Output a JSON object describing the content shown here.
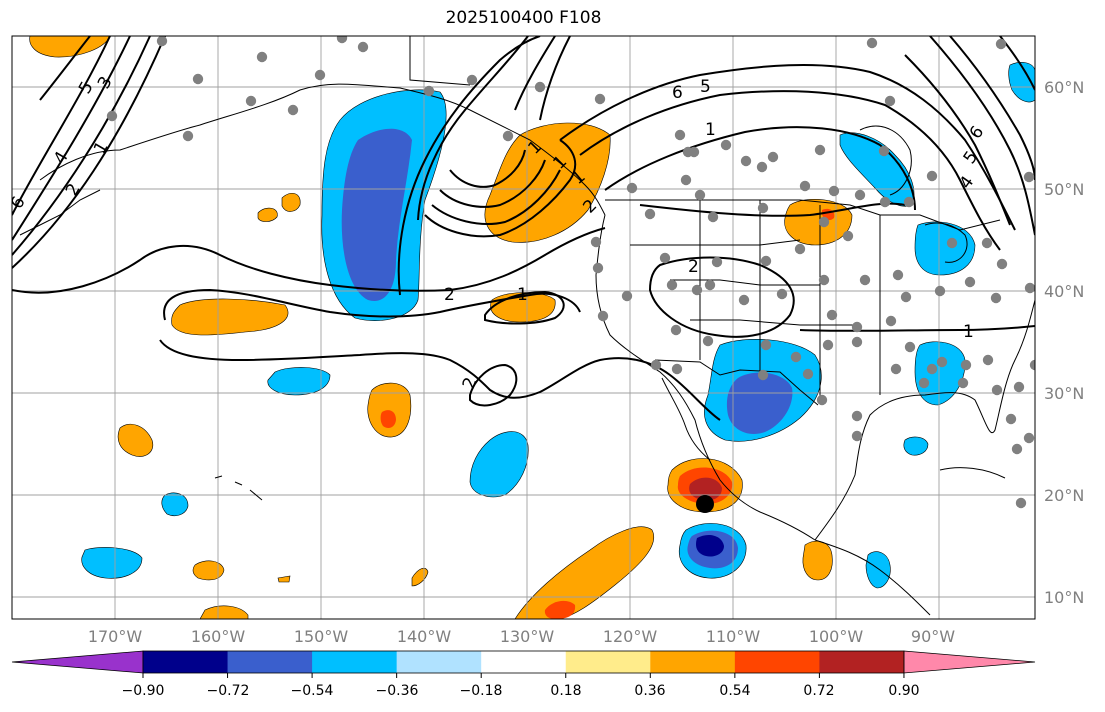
{
  "title": "2025100400 F108",
  "lat_labels": [
    "60°N",
    "50°N",
    "40°N",
    "30°N",
    "20°N",
    "10°N"
  ],
  "lon_labels": [
    "170°W",
    "160°W",
    "150°W",
    "140°W",
    "130°W",
    "120°W",
    "110°W",
    "100°W",
    "90°W"
  ],
  "colorbar": {
    "ticks": [
      "−0.90",
      "−0.72",
      "−0.54",
      "−0.36",
      "−0.18",
      "0.18",
      "0.36",
      "0.54",
      "0.72",
      "0.90"
    ],
    "colors": [
      "#9932cc",
      "#00008b",
      "#3a5fcd",
      "#00bfff",
      "#b0e2ff",
      "#ffffff",
      "#ffec8b",
      "#ffa500",
      "#ff4500",
      "#b22222",
      "#ff88aa"
    ]
  },
  "contour_labels": [
    "6",
    "5",
    "4",
    "3",
    "1",
    "2",
    "1",
    "2",
    "2",
    "1",
    "1",
    "6",
    "5",
    "1",
    "5",
    "4",
    "6",
    "2",
    "2",
    "1",
    "1"
  ],
  "colors": {
    "orange": "#ffa500",
    "red_orange": "#ff4500",
    "dark_red": "#b22222",
    "sky": "#00bfff",
    "royal": "#3a5fcd",
    "navy": "#00008b",
    "station": "#808080",
    "grid": "#a0a0a0"
  }
}
